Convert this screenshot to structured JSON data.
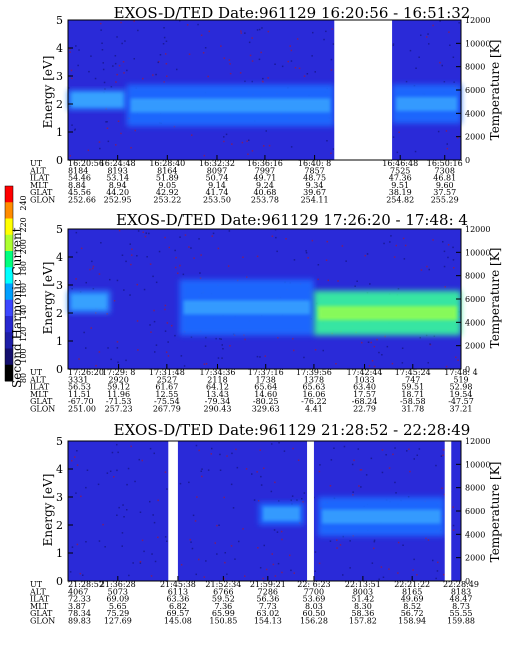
{
  "figure": {
    "colorbar": {
      "label": "Second Harmonic Current",
      "ticks": [
        "240",
        "220",
        "200",
        "180",
        "160",
        "140",
        "120",
        "100",
        "80"
      ],
      "colors": [
        "#ff0000",
        "#ff8c00",
        "#ffff00",
        "#adff2f",
        "#00ff7f",
        "#00ffff",
        "#00a0ff",
        "#3c46ff",
        "#2828d0",
        "#1e1ea8",
        "#140f6e",
        "#000000"
      ]
    },
    "panels": [
      {
        "title": "EXOS-D/TED   Date:961129   16:20:56 - 16:51:32",
        "ylabel": "Energy [eV]",
        "y2label": "Temperature [K]",
        "row_labels": [
          "UT",
          "ALT",
          "ILAT",
          "MLT",
          "GLAT",
          "GLON"
        ],
        "columns": [
          [
            "16:20:56",
            "8184",
            "54.46",
            "8.84",
            "45.56",
            "252.66"
          ],
          [
            "16:24:48",
            "8193",
            "53.14",
            "8.94",
            "44.20",
            "252.95"
          ],
          [
            "16:28:40",
            "8164",
            "51.89",
            "9.05",
            "42.92",
            "253.22"
          ],
          [
            "16:32:32",
            "8097",
            "50.74",
            "9.14",
            "41.74",
            "253.50"
          ],
          [
            "16:36:16",
            "7997",
            "49.71",
            "9.24",
            "40.68",
            "253.78"
          ],
          [
            "16:40: 8",
            "7857",
            "48.75",
            "9.34",
            "39.67",
            "254.11"
          ],
          [
            "16:46:48",
            "7525",
            "47.36",
            "9.51",
            "38.19",
            "254.82"
          ],
          [
            "16:50:16",
            "7308",
            "46.81",
            "9.60",
            "37.57",
            "255.29"
          ]
        ]
      },
      {
        "title": "EXOS-D/TED   Date:961129   17:26:20 - 17:48: 4",
        "ylabel": "Energy [eV]",
        "y2label": "Temperature [K]",
        "row_labels": [
          "UT",
          "ALT",
          "ILAT",
          "MLT",
          "GLAT",
          "GLON"
        ],
        "columns": [
          [
            "17:26:20",
            "3331",
            "56.53",
            "11.51",
            "-67.70",
            "251.00"
          ],
          [
            "17:29: 8",
            "2920",
            "59.12",
            "11.96",
            "-71.53",
            "257.23"
          ],
          [
            "17:31:48",
            "2527",
            "61.67",
            "12.55",
            "-75.54",
            "267.79"
          ],
          [
            "17:34:36",
            "2118",
            "64.12",
            "13.43",
            "-79.34",
            "290.43"
          ],
          [
            "17:37:16",
            "1738",
            "65.64",
            "14.60",
            "-80.25",
            "329.63"
          ],
          [
            "17:39:56",
            "1378",
            "65.63",
            "16.06",
            "-76.22",
            "4.41"
          ],
          [
            "17:42:44",
            "1033",
            "63.40",
            "17.57",
            "-68.24",
            "22.79"
          ],
          [
            "17:45:24",
            "747",
            "59.51",
            "18.71",
            "-58.58",
            "31.78"
          ],
          [
            "17:48: 4",
            "519",
            "52.98",
            "19.54",
            "-47.57",
            "37.21"
          ]
        ]
      },
      {
        "title": "EXOS-D/TED   Date:961129   21:28:52 - 22:28:49",
        "ylabel": "Energy [eV]",
        "y2label": "Temperature [K]",
        "row_labels": [
          "UT",
          "ALT",
          "ILAT",
          "MLT",
          "GLAT",
          "GLON"
        ],
        "columns": [
          [
            "21:28:52",
            "4067",
            "72.33",
            "3.87",
            "78.34",
            "89.83"
          ],
          [
            "21:36:28",
            "5073",
            "69.09",
            "5.65",
            "75.29",
            "127.69"
          ],
          [
            "21:45:38",
            "6113",
            "63.36",
            "6.82",
            "69.57",
            "145.08"
          ],
          [
            "21:52:34",
            "6766",
            "59.52",
            "7.36",
            "65.99",
            "150.85"
          ],
          [
            "21:59:21",
            "7286",
            "56.36",
            "7.73",
            "63.02",
            "154.13"
          ],
          [
            "22: 6:23",
            "7700",
            "53.69",
            "8.03",
            "60.50",
            "156.28"
          ],
          [
            "22:13:51",
            "8003",
            "51.42",
            "8.30",
            "58.36",
            "157.82"
          ],
          [
            "22:21:22",
            "8165",
            "49.69",
            "8.52",
            "56.72",
            "158.94"
          ],
          [
            "22:28:49",
            "8183",
            "48.47",
            "8.73",
            "55.55",
            "159.88"
          ]
        ]
      }
    ]
  },
  "chart_data": [
    {
      "type": "heatmap",
      "title": "EXOS-D/TED   Date:961129   16:20:56 - 16:51:32",
      "ylabel": "Energy [eV]",
      "y2label": "Temperature [K]",
      "x": [
        "16:20:56",
        "16:24:48",
        "16:28:40",
        "16:32:32",
        "16:36:16",
        "16:40: 8",
        "16:46:48",
        "16:50:16"
      ],
      "ylim": [
        0,
        5
      ],
      "y2lim": [
        0,
        12000
      ],
      "yticks": [
        0,
        1,
        2,
        3,
        4,
        5
      ],
      "y2ticks": [
        0,
        2000,
        4000,
        6000,
        8000,
        10000,
        12000
      ],
      "data_gaps": [
        [
          "16:41:40",
          "16:46:10"
        ]
      ],
      "features": [
        {
          "from": "16:20:56",
          "to": "16:25:30",
          "energy_band": [
            1.8,
            2.5
          ],
          "level": "140"
        },
        {
          "from": "16:25:30",
          "to": "16:41:40",
          "energy_band": [
            1.2,
            2.7
          ],
          "level": "120-140"
        },
        {
          "from": "16:46:10",
          "to": "16:51:32",
          "energy_band": [
            1.3,
            2.7
          ],
          "level": "120-140"
        }
      ],
      "colorbar_label": "Second Harmonic Current",
      "colorbar_ticks": [
        80,
        100,
        120,
        140,
        160,
        180,
        200,
        220,
        240
      ]
    },
    {
      "type": "heatmap",
      "title": "EXOS-D/TED   Date:961129   17:26:20 - 17:48: 4",
      "ylabel": "Energy [eV]",
      "y2label": "Temperature [K]",
      "x": [
        "17:26:20",
        "17:29: 8",
        "17:31:48",
        "17:34:36",
        "17:37:16",
        "17:39:56",
        "17:42:44",
        "17:45:24",
        "17:48: 4"
      ],
      "ylim": [
        0,
        5
      ],
      "y2lim": [
        0,
        12000
      ],
      "yticks": [
        0,
        1,
        2,
        3,
        4,
        5
      ],
      "y2ticks": [
        0,
        2000,
        4000,
        6000,
        8000,
        10000,
        12000
      ],
      "data_gaps": [],
      "features": [
        {
          "from": "17:26:20",
          "to": "17:28:40",
          "energy_band": [
            2.0,
            2.8
          ],
          "level": "140"
        },
        {
          "from": "17:32:30",
          "to": "17:39:56",
          "energy_band": [
            1.2,
            3.2
          ],
          "level": "120-140"
        },
        {
          "from": "17:39:56",
          "to": "17:48: 4",
          "energy_band": [
            1.2,
            2.8
          ],
          "level": "160-180"
        }
      ],
      "colorbar_label": "Second Harmonic Current",
      "colorbar_ticks": [
        80,
        100,
        120,
        140,
        160,
        180,
        200,
        220,
        240
      ]
    },
    {
      "type": "heatmap",
      "title": "EXOS-D/TED   Date:961129   21:28:52 - 22:28:49",
      "ylabel": "Energy [eV]",
      "y2label": "Temperature [K]",
      "x": [
        "21:28:52",
        "21:36:28",
        "21:45:38",
        "21:52:34",
        "21:59:21",
        "22: 6:23",
        "22:13:51",
        "22:21:22",
        "22:28:49"
      ],
      "ylim": [
        0,
        5
      ],
      "y2lim": [
        0,
        12000
      ],
      "yticks": [
        0,
        1,
        2,
        3,
        4,
        5
      ],
      "y2ticks": [
        0,
        2000,
        4000,
        6000,
        8000,
        10000,
        12000
      ],
      "data_gaps": [
        [
          "21:44:10",
          "21:45:38"
        ],
        [
          "22:05:20",
          "22:06:23"
        ],
        [
          "22:26:20",
          "22:27:20"
        ]
      ],
      "features": [
        {
          "from": "21:58:00",
          "to": "22:04:50",
          "energy_band": [
            2.0,
            2.8
          ],
          "level": "120-140"
        },
        {
          "from": "22:07:00",
          "to": "22:26:20",
          "energy_band": [
            1.6,
            3.0
          ],
          "level": "120-140"
        }
      ],
      "colorbar_label": "Second Harmonic Current",
      "colorbar_ticks": [
        80,
        100,
        120,
        140,
        160,
        180,
        200,
        220,
        240
      ]
    }
  ]
}
